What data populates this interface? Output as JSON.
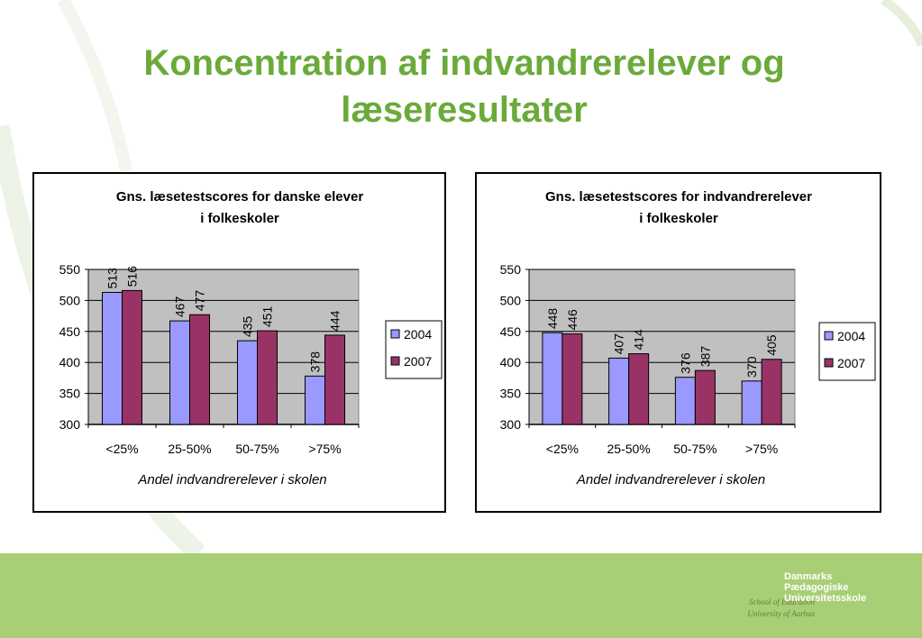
{
  "slide": {
    "title_line1": "Koncentration af indvandrerelever og",
    "title_line2": "læseresultater"
  },
  "footer": {
    "logo_line1": "Danmarks",
    "logo_line2": "Pædagogiske",
    "logo_line3": "Universitetsskole",
    "school_line1": "School of Education",
    "school_line2": "University of Aarhus"
  },
  "colors": {
    "title": "#6aaa3a",
    "series_2004": "#9999ff",
    "series_2007": "#993366",
    "plot_bg": "#c0c0c0",
    "footer_band": "#a9cf76"
  },
  "chart_data": [
    {
      "type": "bar",
      "title_line1": "Gns. læsetestscores for danske elever",
      "title_line2": "i folkeskoler",
      "categories": [
        "<25%",
        "25-50%",
        "50-75%",
        ">75%"
      ],
      "xlabel": "Andel indvandrerelever i skolen",
      "ylabel": "",
      "ylim": [
        300,
        550
      ],
      "yticks": [
        300,
        350,
        400,
        450,
        500,
        550
      ],
      "grid": true,
      "legend": "right",
      "series": [
        {
          "name": "2004",
          "values": [
            513,
            467,
            435,
            378
          ]
        },
        {
          "name": "2007",
          "values": [
            516,
            477,
            451,
            444
          ]
        }
      ]
    },
    {
      "type": "bar",
      "title_line1": "Gns. læsetestscores for indvandrerelever",
      "title_line2": "i folkeskoler",
      "categories": [
        "<25%",
        "25-50%",
        "50-75%",
        ">75%"
      ],
      "xlabel": "Andel indvandrerelever i skolen",
      "ylabel": "",
      "ylim": [
        300,
        550
      ],
      "yticks": [
        300,
        350,
        400,
        450,
        500,
        550
      ],
      "grid": true,
      "legend": "right",
      "series": [
        {
          "name": "2004",
          "values": [
            448,
            407,
            376,
            370
          ]
        },
        {
          "name": "2007",
          "values": [
            446,
            414,
            387,
            405
          ]
        }
      ]
    }
  ]
}
